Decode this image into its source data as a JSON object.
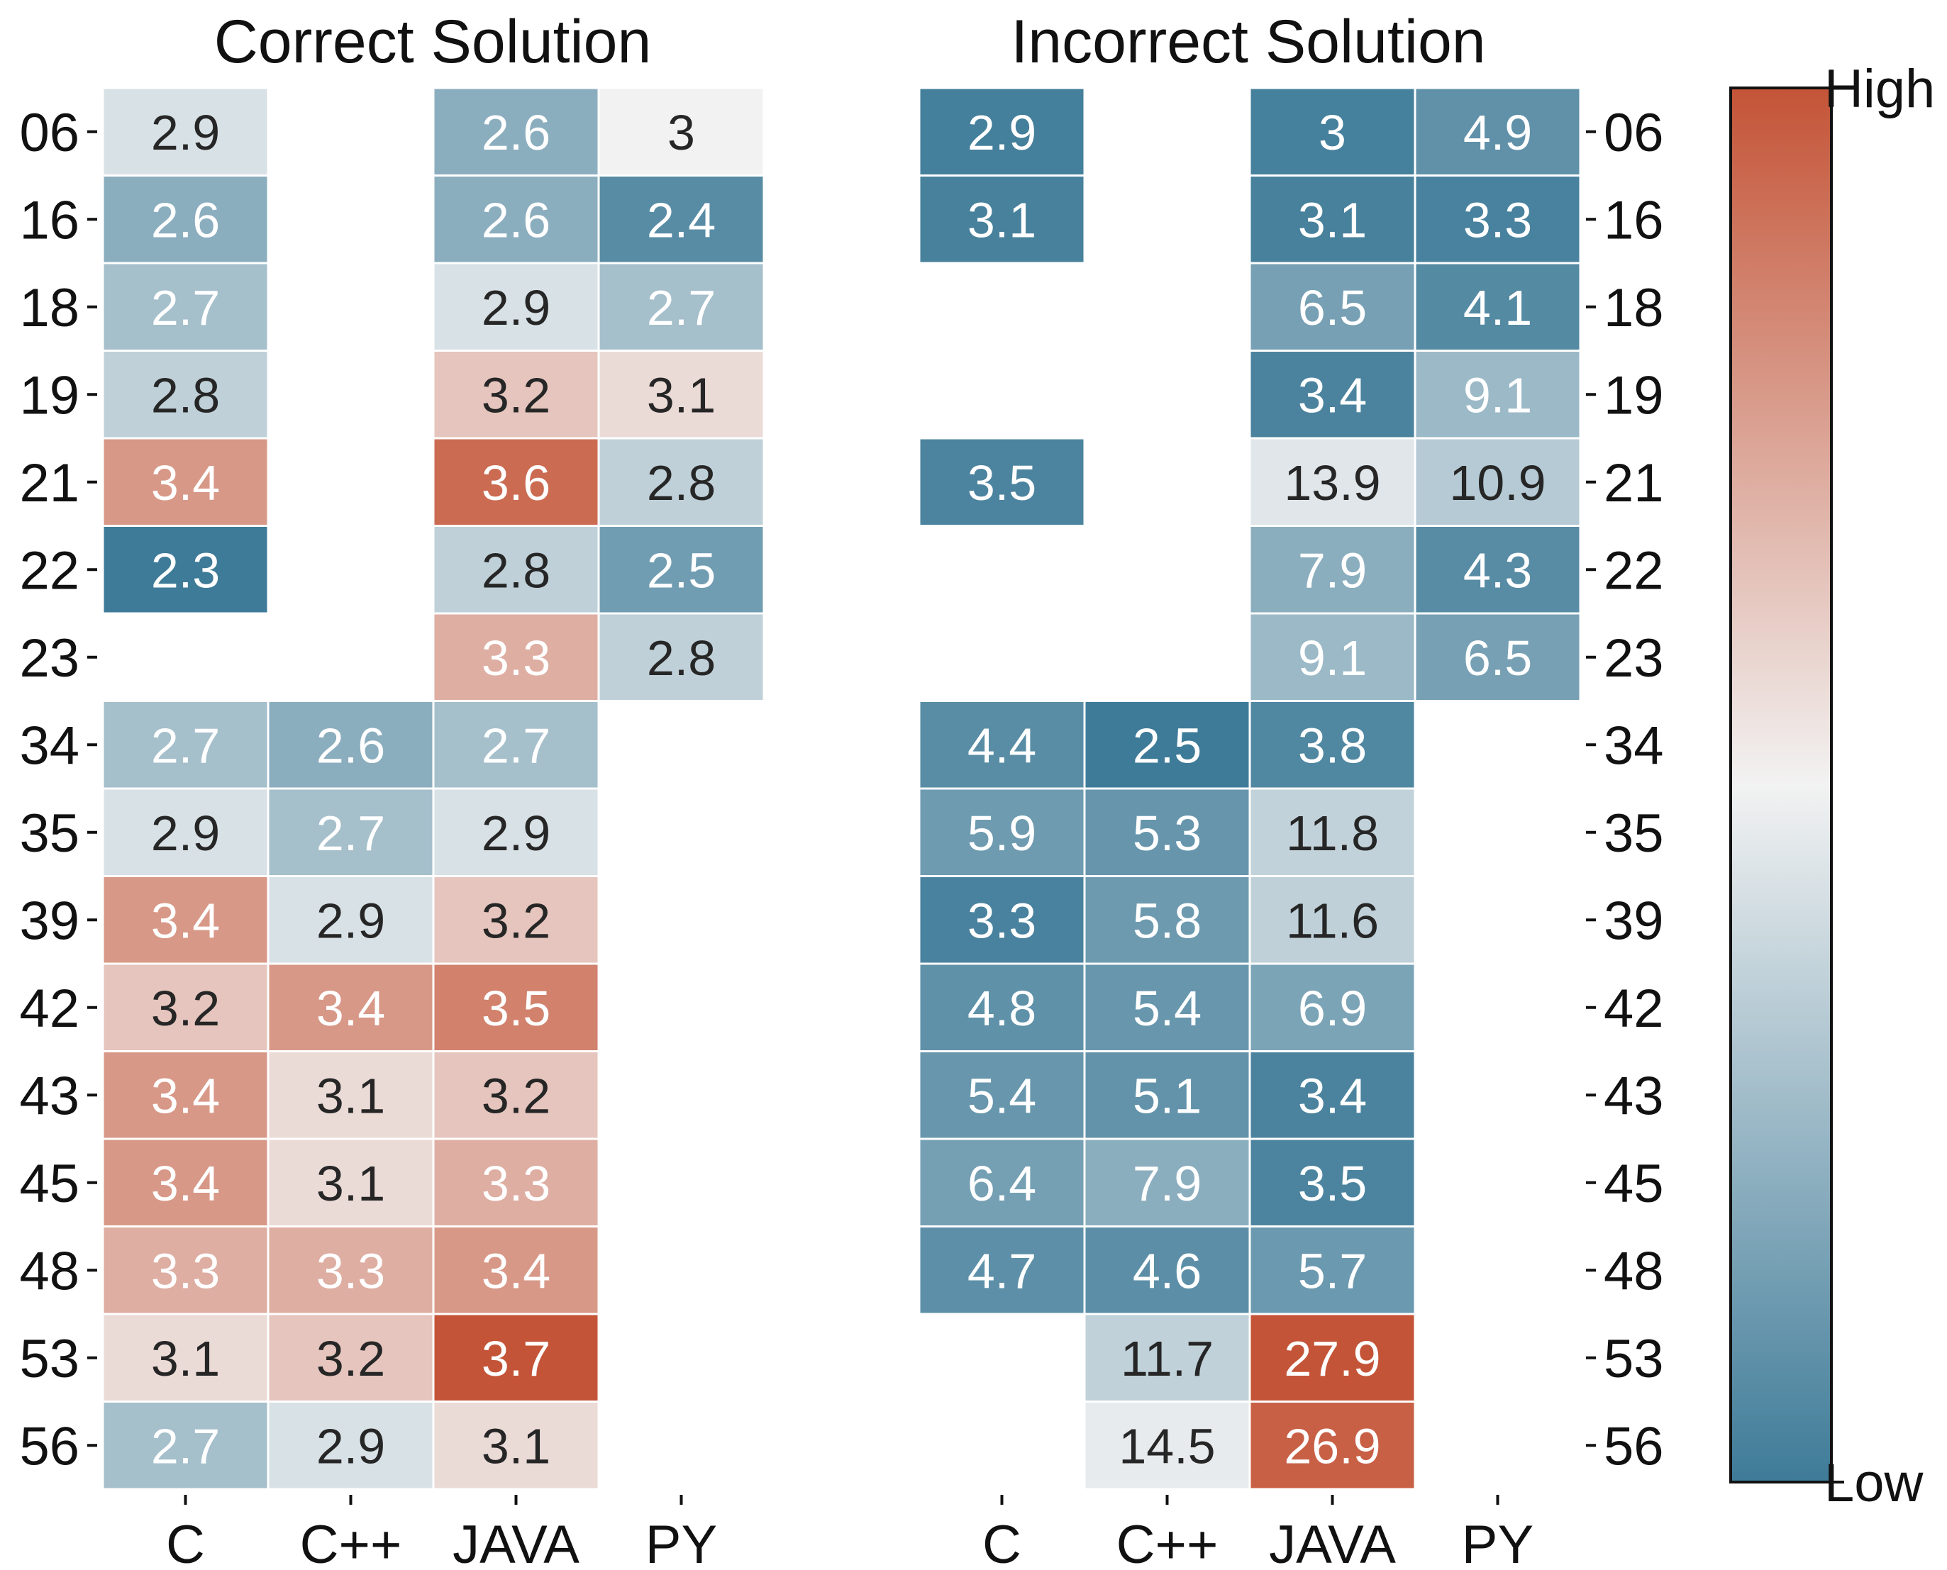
{
  "chart_data": {
    "type": "heatmap",
    "rows": [
      "06",
      "16",
      "18",
      "19",
      "21",
      "22",
      "23",
      "34",
      "35",
      "39",
      "42",
      "43",
      "45",
      "48",
      "53",
      "56"
    ],
    "columns": [
      "C",
      "C++",
      "JAVA",
      "PY"
    ],
    "colorbar": {
      "high_label": "High",
      "low_label": "Low"
    },
    "colors": {
      "low": "#3e7b98",
      "mid": "#f2f2f2",
      "high": "#c45437",
      "cell_border": "#ffffff",
      "text_dark": "#262626",
      "text_light": "#ffffff"
    },
    "panels": [
      {
        "title": "Correct Solution",
        "vmin": 2.3,
        "vcenter": 3.0,
        "vmax": 3.7,
        "values": [
          [
            2.9,
            null,
            2.6,
            "3"
          ],
          [
            2.6,
            null,
            2.6,
            2.4
          ],
          [
            2.7,
            null,
            2.9,
            2.7
          ],
          [
            2.8,
            null,
            3.2,
            3.1
          ],
          [
            3.4,
            null,
            3.6,
            2.8
          ],
          [
            2.3,
            null,
            2.8,
            2.5
          ],
          [
            null,
            null,
            3.3,
            2.8
          ],
          [
            2.7,
            2.6,
            2.7,
            null
          ],
          [
            2.9,
            2.7,
            2.9,
            null
          ],
          [
            3.4,
            2.9,
            3.2,
            null
          ],
          [
            3.2,
            3.4,
            3.5,
            null
          ],
          [
            3.4,
            3.1,
            3.2,
            null
          ],
          [
            3.4,
            3.1,
            3.3,
            null
          ],
          [
            3.3,
            3.3,
            3.4,
            null
          ],
          [
            3.1,
            3.2,
            3.7,
            null
          ],
          [
            2.7,
            2.9,
            3.1,
            null
          ]
        ]
      },
      {
        "title": "Incorrect Solution",
        "vmin": 2.5,
        "vcenter": 15.2,
        "vmax": 27.9,
        "values": [
          [
            2.9,
            null,
            3.0,
            4.9
          ],
          [
            3.1,
            null,
            3.1,
            3.3
          ],
          [
            null,
            null,
            6.5,
            4.1
          ],
          [
            null,
            null,
            3.4,
            9.1
          ],
          [
            3.5,
            null,
            13.9,
            10.9
          ],
          [
            null,
            null,
            7.9,
            4.3
          ],
          [
            null,
            null,
            9.1,
            6.5
          ],
          [
            4.4,
            2.5,
            3.8,
            null
          ],
          [
            5.9,
            5.3,
            11.8,
            null
          ],
          [
            3.3,
            5.8,
            11.6,
            null
          ],
          [
            4.8,
            5.4,
            6.9,
            null
          ],
          [
            5.4,
            5.1,
            3.4,
            null
          ],
          [
            6.4,
            7.9,
            3.5,
            null
          ],
          [
            4.7,
            4.6,
            5.7,
            null
          ],
          [
            null,
            11.7,
            27.9,
            null
          ],
          [
            null,
            14.5,
            26.9,
            null
          ]
        ]
      }
    ]
  }
}
